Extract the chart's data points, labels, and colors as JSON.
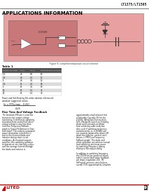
{
  "page_bg": "#ffffff",
  "header_line_color": "#444444",
  "header_text": "LT1375/LT1595",
  "header_text_color": "#222222",
  "title_text": "APPLICATIONS INFORMATION",
  "title_color": "#000000",
  "circuit_bg": "#e8a0a0",
  "circuit_border": "#888888",
  "body_text_color": "#111111",
  "footer_line_color": "#cc0000",
  "footer_logo_color": "#cc0000",
  "page_number": "9",
  "table_header_bg": "#555555",
  "table_header_fg": "#ffffff",
  "table_row_colors": [
    "#ffffff",
    "#dddddd"
  ]
}
